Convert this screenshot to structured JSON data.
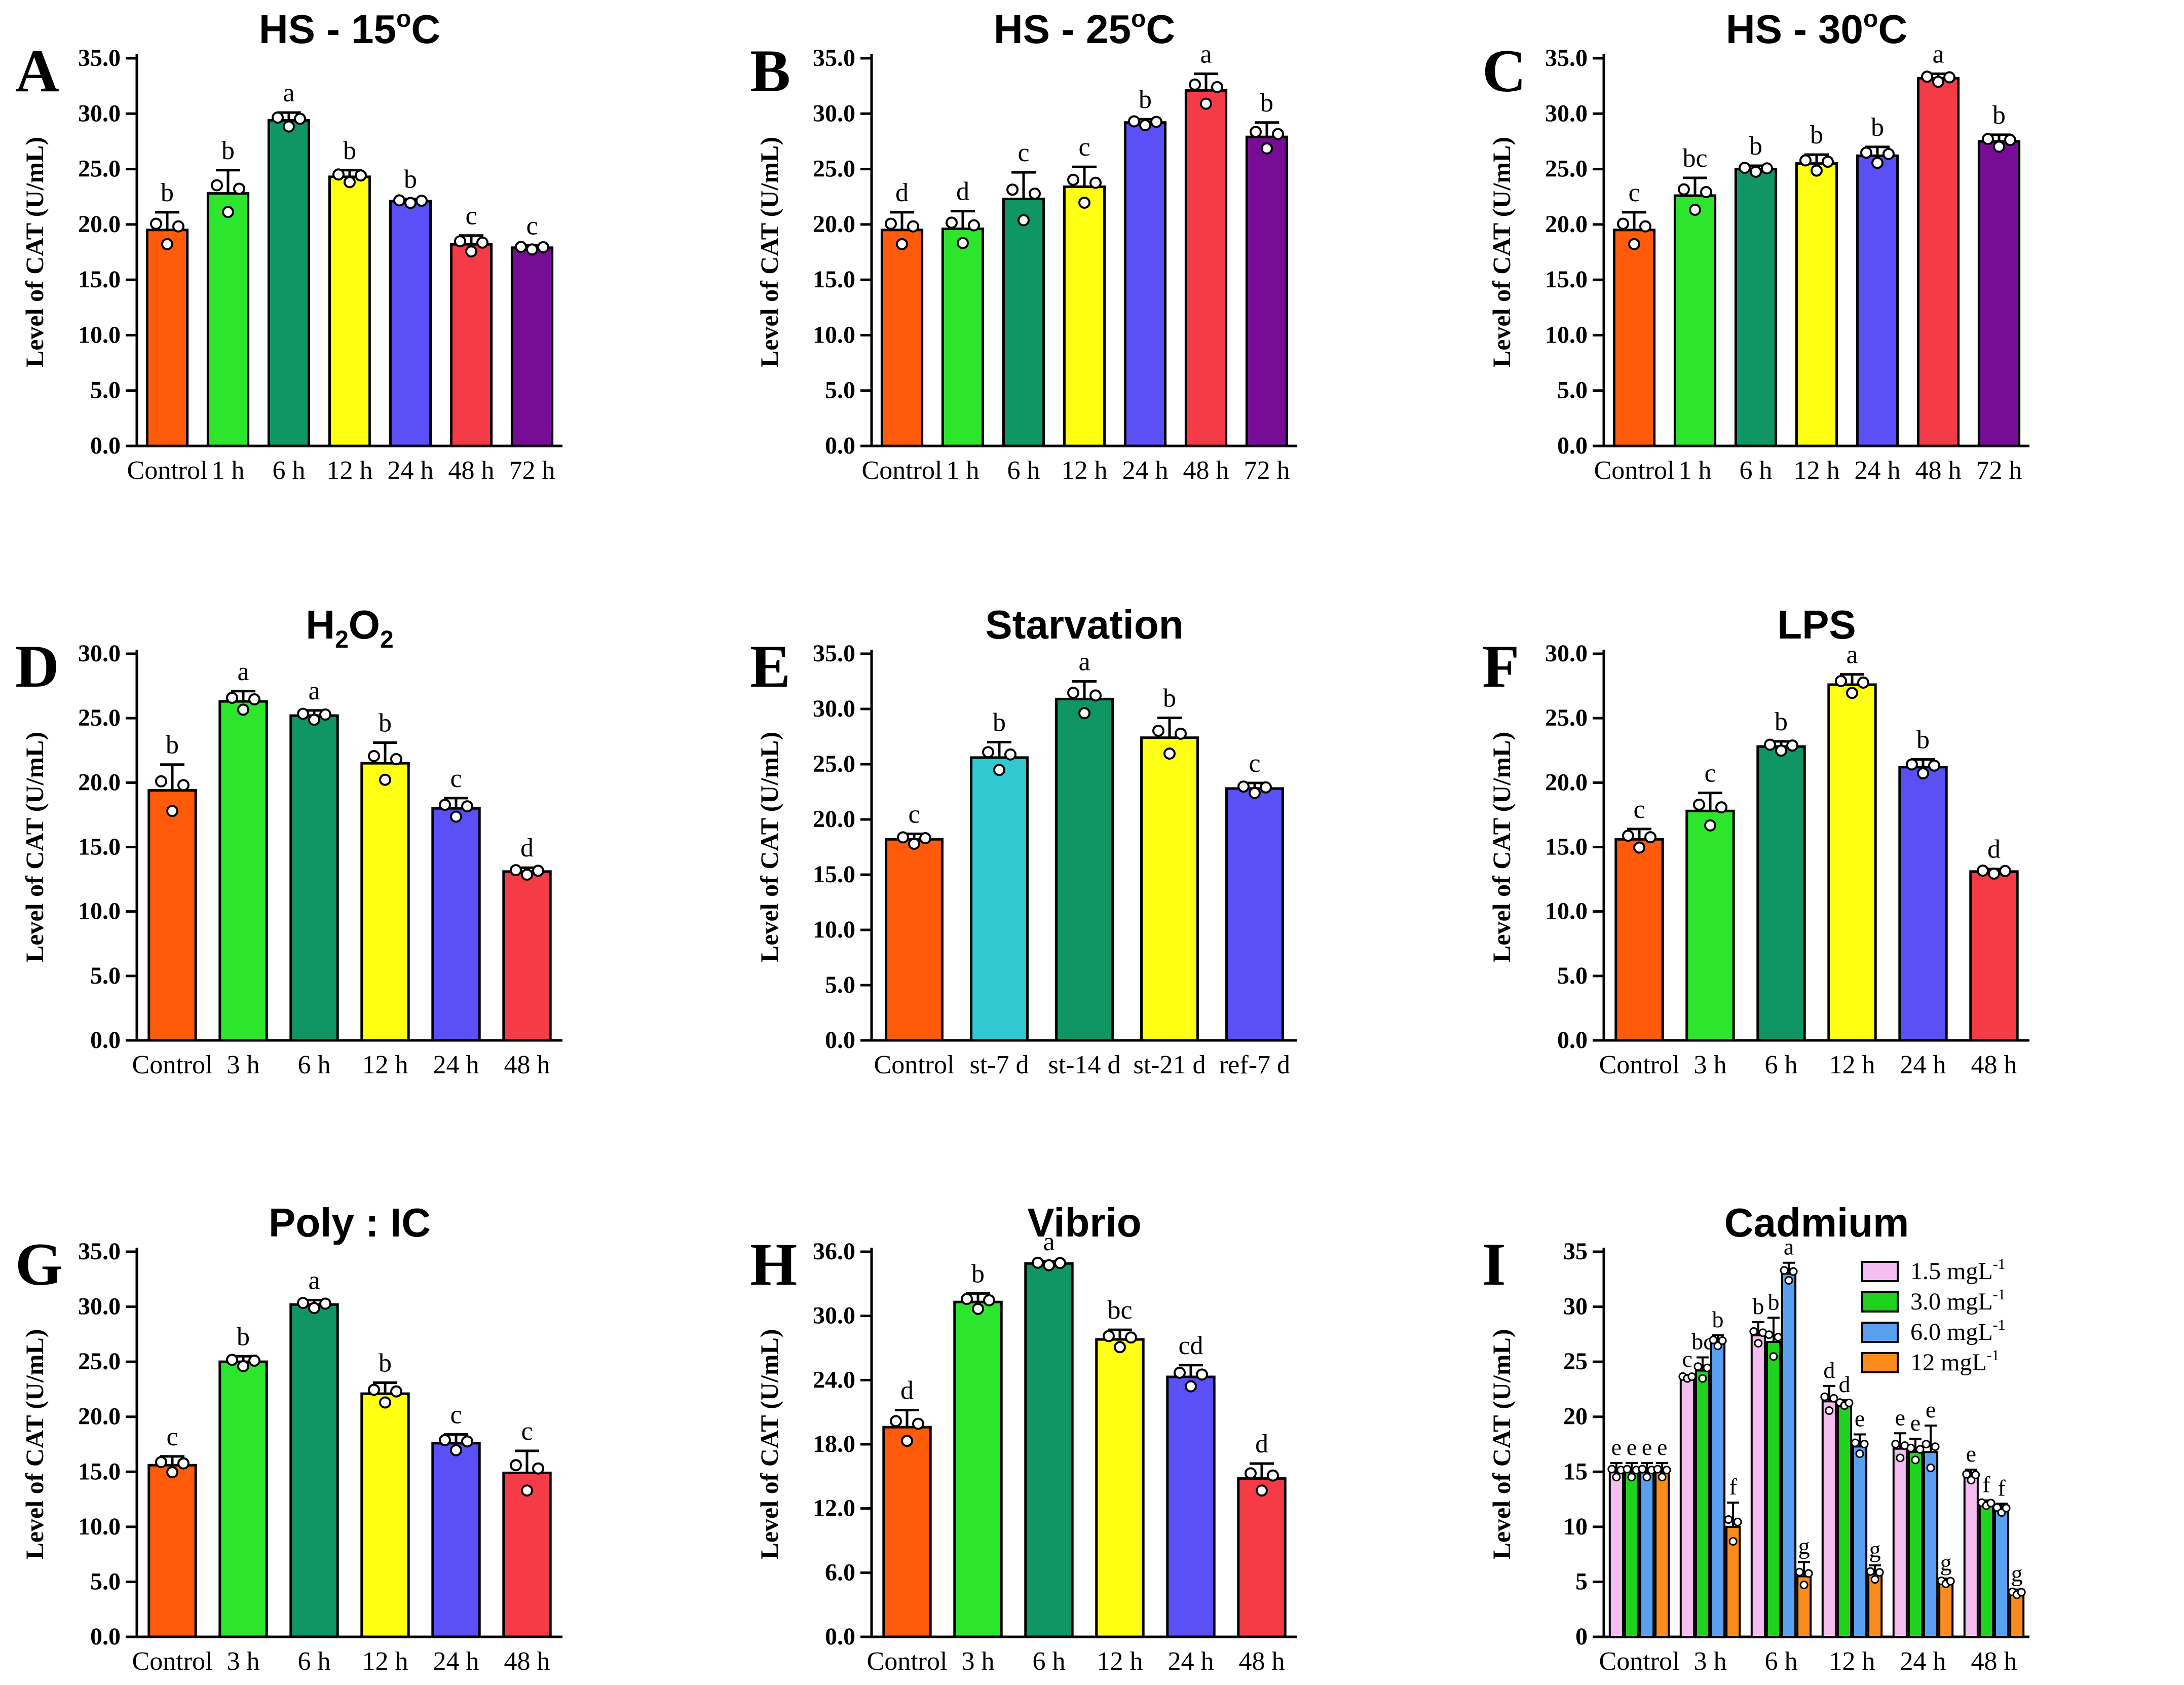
{
  "chart_data": [
    {
      "letter": "A",
      "title": "HS - 15",
      "title_sup": "o",
      "title_suffix": "C",
      "type": "bar",
      "ylabel": "Level of CAT (U/mL)",
      "ylim": [
        0,
        35
      ],
      "ytick_step": 5,
      "ytick_decimals": 1,
      "categories": [
        "Control",
        "1 h",
        "6 h",
        "12 h",
        "24 h",
        "48 h",
        "72 h"
      ],
      "values": [
        19.5,
        22.8,
        29.4,
        24.3,
        22.1,
        18.2,
        17.9
      ],
      "errors": [
        1.6,
        2.1,
        0.7,
        0.6,
        0.2,
        0.8,
        0.2
      ],
      "letters": [
        "b",
        "b",
        "a",
        "b",
        "b",
        "c",
        "c"
      ],
      "colors": [
        "#FF5B0A",
        "#2EE52E",
        "#0F9664",
        "#FFFF14",
        "#5A50F5",
        "#F53C46",
        "#780C96"
      ]
    },
    {
      "letter": "B",
      "title": "HS - 25",
      "title_sup": "o",
      "title_suffix": "C",
      "type": "bar",
      "ylabel": "Level of CAT (U/mL)",
      "ylim": [
        0,
        35
      ],
      "ytick_step": 5,
      "ytick_decimals": 1,
      "categories": [
        "Control",
        "1 h",
        "6 h",
        "12 h",
        "24 h",
        "48 h",
        "72 h"
      ],
      "values": [
        19.5,
        19.6,
        22.3,
        23.4,
        29.2,
        32.1,
        27.9
      ],
      "errors": [
        1.6,
        1.6,
        2.4,
        1.8,
        0.3,
        1.5,
        1.3
      ],
      "letters": [
        "d",
        "d",
        "c",
        "c",
        "b",
        "a",
        "b"
      ],
      "colors": [
        "#FF5B0A",
        "#2EE52E",
        "#0F9664",
        "#FFFF14",
        "#5A50F5",
        "#F53C46",
        "#780C96"
      ]
    },
    {
      "letter": "C",
      "title": "HS - 30",
      "title_sup": "o",
      "title_suffix": "C",
      "type": "bar",
      "ylabel": "Level of CAT (U/mL)",
      "ylim": [
        0,
        35
      ],
      "ytick_step": 5,
      "ytick_decimals": 1,
      "categories": [
        "Control",
        "1 h",
        "6 h",
        "12 h",
        "24 h",
        "48 h",
        "72 h"
      ],
      "values": [
        19.5,
        22.6,
        25.0,
        25.5,
        26.2,
        33.2,
        27.5
      ],
      "errors": [
        1.6,
        1.6,
        0.3,
        0.8,
        0.8,
        0.4,
        0.6
      ],
      "letters": [
        "c",
        "bc",
        "b",
        "b",
        "b",
        "a",
        "b"
      ],
      "colors": [
        "#FF5B0A",
        "#2EE52E",
        "#0F9664",
        "#FFFF14",
        "#5A50F5",
        "#F53C46",
        "#780C96"
      ]
    },
    {
      "letter": "D",
      "title": "H",
      "title_sub1": "2",
      "title_mid": "O",
      "title_sub2": "2",
      "type": "bar",
      "ylabel": "Level of CAT (U/mL)",
      "ylim": [
        0,
        30
      ],
      "ytick_step": 5,
      "ytick_decimals": 1,
      "categories": [
        "Control",
        "3 h",
        "6 h",
        "12 h",
        "24 h",
        "48 h"
      ],
      "values": [
        19.4,
        26.3,
        25.2,
        21.5,
        18.0,
        13.1
      ],
      "errors": [
        2.0,
        0.8,
        0.4,
        1.6,
        0.8,
        0.3
      ],
      "letters": [
        "b",
        "a",
        "a",
        "b",
        "c",
        "d"
      ],
      "colors": [
        "#FF5B0A",
        "#2EE52E",
        "#0F9664",
        "#FFFF14",
        "#5A50F5",
        "#F53C46"
      ]
    },
    {
      "letter": "E",
      "title": "Starvation",
      "type": "bar",
      "ylabel": "Level of CAT (U/mL)",
      "ylim": [
        0,
        35
      ],
      "ytick_step": 5,
      "ytick_decimals": 1,
      "categories": [
        "Control",
        "st-7 d",
        "st-14 d",
        "st-21 d",
        "ref-7 d"
      ],
      "values": [
        18.2,
        25.6,
        30.9,
        27.4,
        22.8
      ],
      "errors": [
        0.5,
        1.4,
        1.6,
        1.8,
        0.5
      ],
      "letters": [
        "c",
        "b",
        "a",
        "b",
        "c"
      ],
      "colors": [
        "#FF5B0A",
        "#32C8D2",
        "#0F9664",
        "#FFFF14",
        "#5A50F5"
      ]
    },
    {
      "letter": "F",
      "title": "LPS",
      "type": "bar",
      "ylabel": "Level of CAT (U/mL)",
      "ylim": [
        0,
        30
      ],
      "ytick_step": 5,
      "ytick_decimals": 1,
      "categories": [
        "Control",
        "3 h",
        "6 h",
        "12 h",
        "24 h",
        "48 h"
      ],
      "values": [
        15.6,
        17.8,
        22.8,
        27.6,
        21.2,
        13.1
      ],
      "errors": [
        0.8,
        1.4,
        0.4,
        0.8,
        0.6,
        0.2
      ],
      "letters": [
        "c",
        "c",
        "b",
        "a",
        "b",
        "d"
      ],
      "colors": [
        "#FF5B0A",
        "#2EE52E",
        "#0F9664",
        "#FFFF14",
        "#5A50F5",
        "#F53C46"
      ]
    },
    {
      "letter": "G",
      "title": "Poly : IC",
      "type": "bar",
      "ylabel": "Level of CAT (U/mL)",
      "ylim": [
        0,
        35
      ],
      "ytick_step": 5,
      "ytick_decimals": 1,
      "categories": [
        "Control",
        "3 h",
        "6 h",
        "12 h",
        "24 h",
        "48 h"
      ],
      "values": [
        15.6,
        25.0,
        30.2,
        22.1,
        17.6,
        14.9
      ],
      "errors": [
        0.8,
        0.5,
        0.4,
        1.0,
        0.8,
        2.0
      ],
      "letters": [
        "c",
        "b",
        "a",
        "b",
        "c",
        "c"
      ],
      "colors": [
        "#FF5B0A",
        "#2EE52E",
        "#0F9664",
        "#FFFF14",
        "#5A50F5",
        "#F53C46"
      ]
    },
    {
      "letter": "H",
      "title": "Vibrio",
      "type": "bar",
      "ylabel": "Level of CAT (U/mL)",
      "ylim": [
        0,
        36
      ],
      "ytick_step": 6,
      "ytick_decimals": 1,
      "categories": [
        "Control",
        "3 h",
        "6 h",
        "12 h",
        "24 h",
        "48 h"
      ],
      "values": [
        19.6,
        31.3,
        34.9,
        27.8,
        24.3,
        14.8
      ],
      "errors": [
        1.6,
        0.8,
        0.2,
        0.9,
        1.1,
        1.4
      ],
      "letters": [
        "d",
        "b",
        "a",
        "bc",
        "cd",
        "d"
      ],
      "colors": [
        "#FF5B0A",
        "#2EE52E",
        "#0F9664",
        "#FFFF14",
        "#5A50F5",
        "#F53C46"
      ]
    },
    {
      "letter": "I",
      "title": "Cadmium",
      "type": "grouped-bar",
      "ylabel": "Level of CAT (U/mL)",
      "ylim": [
        0,
        35
      ],
      "ytick_step": 5,
      "ytick_decimals": 0,
      "categories": [
        "Control",
        "3 h",
        "6 h",
        "12 h",
        "24 h",
        "48 h"
      ],
      "legend_position": "top-right",
      "series": [
        {
          "name": "1.5 mgL",
          "sup": "-1",
          "color": "#F5BEF0",
          "values": [
            15.0,
            23.6,
            27.4,
            21.4,
            17.1,
            14.6
          ],
          "errors": [
            0.8,
            0.2,
            1.2,
            1.4,
            1.4,
            0.6
          ],
          "letters": [
            "e",
            "c",
            "b",
            "d",
            "e",
            "e"
          ]
        },
        {
          "name": "3.0 mgL",
          "sup": "-1",
          "color": "#1ED21E",
          "values": [
            15.0,
            24.2,
            26.8,
            21.2,
            16.8,
            12.1
          ],
          "errors": [
            0.8,
            1.2,
            2.2,
            0.3,
            1.2,
            0.3
          ],
          "letters": [
            "e",
            "bc",
            "b",
            "d",
            "e",
            "f"
          ]
        },
        {
          "name": "6.0 mgL",
          "sup": "-1",
          "color": "#5AA0F0",
          "values": [
            15.0,
            26.8,
            33.0,
            17.3,
            16.8,
            11.6
          ],
          "errors": [
            0.8,
            0.6,
            1.0,
            1.1,
            2.4,
            0.5
          ],
          "letters": [
            "e",
            "b",
            "a",
            "e",
            "e",
            "f"
          ]
        },
        {
          "name": "12 mgL",
          "sup": "-1",
          "color": "#FA8C1E",
          "values": [
            15.0,
            10.0,
            5.5,
            5.7,
            5.0,
            4.0
          ],
          "errors": [
            0.8,
            2.2,
            1.3,
            0.8,
            0.3,
            0.3
          ],
          "letters": [
            "e",
            "f",
            "g",
            "g",
            "g",
            "g"
          ]
        }
      ]
    }
  ]
}
